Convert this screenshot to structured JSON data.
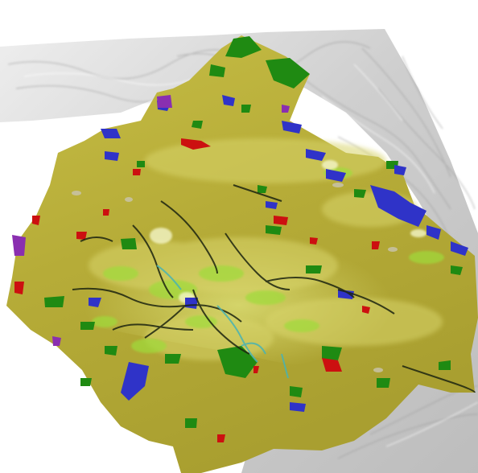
{
  "scene": {
    "view": "3d-perspective",
    "base_relief_color": "#c4c4c4",
    "base_relief_shadow": "#9a9a9a",
    "base_relief_highlight": "#f2f2f2"
  },
  "landcover_classes": [
    {
      "id": "grassland",
      "color": "#b9b03a"
    },
    {
      "id": "grassland-light",
      "color": "#d7d26a"
    },
    {
      "id": "forest",
      "color": "#1f8a12"
    },
    {
      "id": "mixed-vegetation",
      "color": "#79c832"
    },
    {
      "id": "water",
      "color": "#2f33c8"
    },
    {
      "id": "urban",
      "color": "#cc1010"
    },
    {
      "id": "river",
      "color": "#48b3b3"
    },
    {
      "id": "heath",
      "color": "#8a2fb0"
    },
    {
      "id": "bare",
      "color": "#b8b8b8"
    }
  ]
}
